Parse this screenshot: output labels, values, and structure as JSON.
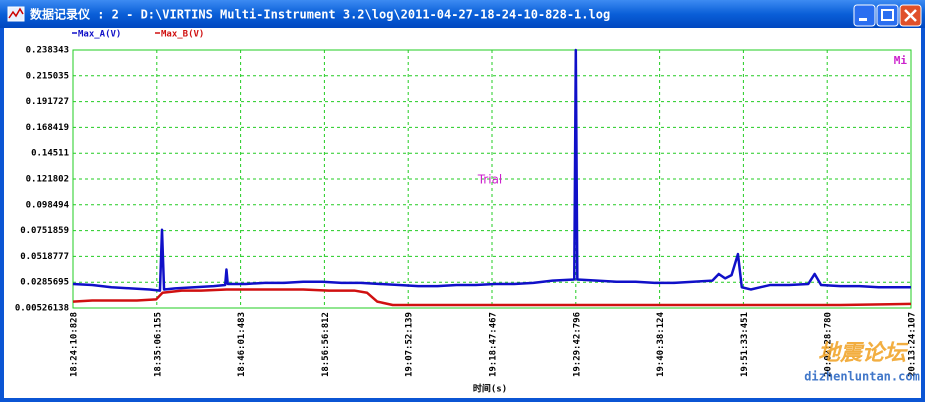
{
  "window": {
    "title": "数据记录仪 : 2 - D:\\VIRTINS Multi-Instrument 3.2\\log\\2011-04-27-18-24-10-828-1.log"
  },
  "chart_data": {
    "type": "line",
    "xlabel": "时间(s)",
    "annotations": [
      "Trial",
      "Mi"
    ],
    "xlim": [
      0,
      6553.279
    ],
    "xticks": [
      {
        "value": 0,
        "label": "18:24:10:828"
      },
      {
        "value": 655.327,
        "label": "18:35:06:155"
      },
      {
        "value": 1310.655,
        "label": "18:46:01:483"
      },
      {
        "value": 1965.984,
        "label": "18:56:56:812"
      },
      {
        "value": 2621.311,
        "label": "19:07:52:139"
      },
      {
        "value": 3276.639,
        "label": "19:18:47:467"
      },
      {
        "value": 3931.968,
        "label": "19:29:42:796"
      },
      {
        "value": 4587.296,
        "label": "19:40:38:124"
      },
      {
        "value": 5242.623,
        "label": "19:51:33:451"
      },
      {
        "value": 5897.952,
        "label": "20:02:28:780"
      },
      {
        "value": 6553.279,
        "label": "20:13:24:107"
      }
    ],
    "ylim": [
      0.00526138,
      0.238343
    ],
    "yticks": [
      0.238343,
      0.215035,
      0.191727,
      0.168419,
      0.14511,
      0.121802,
      0.098494,
      0.0751859,
      0.0518777,
      0.0285695,
      0.00526138
    ],
    "grid": true,
    "series": [
      {
        "name": "Max_A(V)",
        "color": "#1010c8",
        "x": [
          0,
          150,
          300,
          450,
          600,
          680,
          696,
          712,
          800,
          950,
          1100,
          1190,
          1200,
          1210,
          1350,
          1500,
          1650,
          1800,
          1950,
          2100,
          2250,
          2400,
          2550,
          2700,
          2850,
          3000,
          3150,
          3300,
          3450,
          3600,
          3750,
          3920,
          3932,
          3944,
          4100,
          4250,
          4400,
          4550,
          4700,
          4850,
          5000,
          5050,
          5100,
          5150,
          5200,
          5230,
          5300,
          5450,
          5600,
          5750,
          5800,
          5850,
          6000,
          6150,
          6300,
          6450,
          6553
        ],
        "values": [
          0.027,
          0.026,
          0.024,
          0.023,
          0.022,
          0.021,
          0.076,
          0.022,
          0.023,
          0.024,
          0.025,
          0.026,
          0.04,
          0.027,
          0.027,
          0.028,
          0.028,
          0.029,
          0.029,
          0.028,
          0.028,
          0.027,
          0.026,
          0.025,
          0.025,
          0.026,
          0.026,
          0.027,
          0.027,
          0.028,
          0.03,
          0.031,
          0.238343,
          0.031,
          0.03,
          0.029,
          0.029,
          0.028,
          0.028,
          0.029,
          0.03,
          0.036,
          0.032,
          0.035,
          0.054,
          0.024,
          0.022,
          0.026,
          0.026,
          0.027,
          0.036,
          0.026,
          0.025,
          0.025,
          0.024,
          0.024,
          0.024
        ]
      },
      {
        "name": "Max_B(V)",
        "color": "#d01010",
        "x": [
          0,
          150,
          300,
          500,
          650,
          700,
          850,
          1000,
          1200,
          1400,
          1600,
          1800,
          2000,
          2200,
          2300,
          2380,
          2500,
          2700,
          3000,
          3500,
          4000,
          4500,
          5000,
          5500,
          6000,
          6553
        ],
        "values": [
          0.011,
          0.012,
          0.012,
          0.012,
          0.013,
          0.019,
          0.021,
          0.021,
          0.022,
          0.022,
          0.022,
          0.022,
          0.021,
          0.021,
          0.019,
          0.011,
          0.008,
          0.008,
          0.008,
          0.008,
          0.008,
          0.008,
          0.008,
          0.008,
          0.008,
          0.009
        ]
      }
    ]
  },
  "watermark": {
    "line1": "地震论坛",
    "line2": "dizhenluntan.com"
  }
}
